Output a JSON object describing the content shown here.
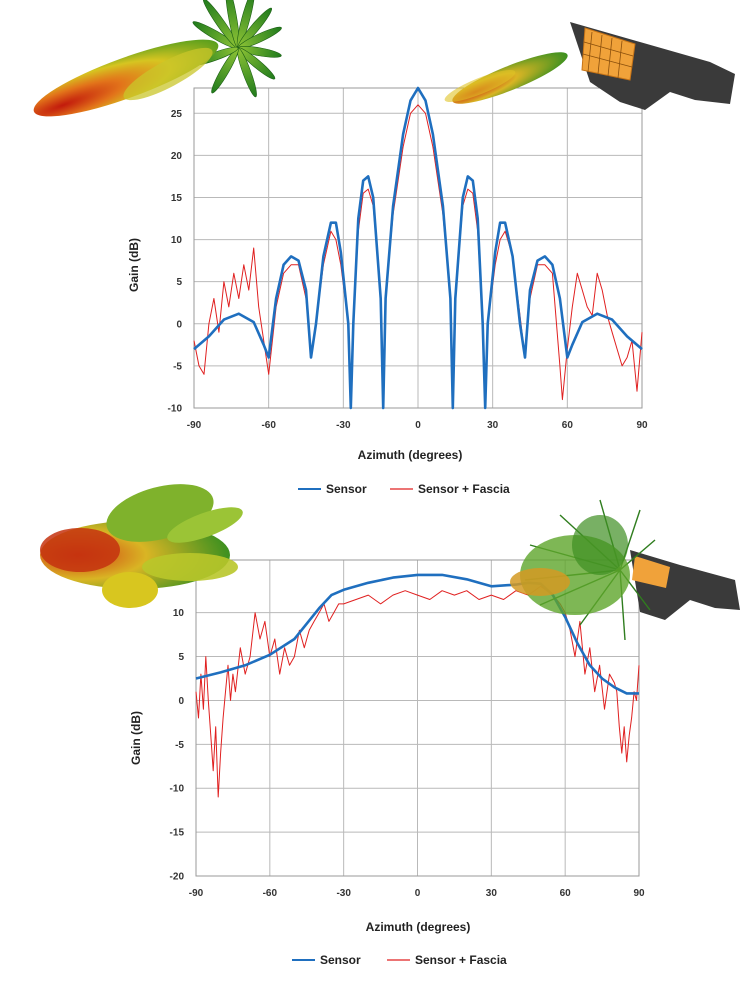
{
  "colors": {
    "sensor": "#1f6fbf",
    "fascia": "#e02020",
    "grid": "#b9b9b9"
  },
  "chart_data": [
    {
      "type": "line",
      "xlabel": "Azimuth (degrees)",
      "ylabel": "Gain (dB)",
      "xlim": [
        -90,
        90
      ],
      "ylim": [
        -10,
        28
      ],
      "xticks": [
        -90,
        -60,
        -30,
        0,
        30,
        60,
        90
      ],
      "yticks": [
        -10,
        -5,
        0,
        5,
        10,
        15,
        20,
        25
      ],
      "grid": true,
      "legend_position": "bottom-center",
      "series": [
        {
          "name": "Sensor",
          "x": [
            -90,
            -84,
            -78,
            -72,
            -66,
            -62,
            -60,
            -57,
            -54,
            -51,
            -48,
            -45,
            -43,
            -41,
            -38,
            -35,
            -33,
            -31,
            -28,
            -27,
            -26,
            -24,
            -22,
            -20,
            -18,
            -15,
            -14,
            -13,
            -10,
            -6,
            -3,
            0,
            3,
            6,
            10,
            13,
            14,
            15,
            18,
            20,
            22,
            24,
            26,
            27,
            28,
            31,
            33,
            35,
            38,
            41,
            43,
            45,
            48,
            51,
            54,
            57,
            60,
            62,
            66,
            72,
            78,
            84,
            90
          ],
          "values": [
            -3,
            -1.5,
            0.5,
            1.2,
            0.2,
            -2.5,
            -4,
            3,
            7,
            8,
            7.5,
            4,
            -4,
            0,
            8,
            12,
            12,
            8.5,
            0,
            -10,
            0,
            12.5,
            17,
            17.5,
            15,
            3,
            -10,
            3,
            14,
            22.5,
            26.5,
            28,
            26.5,
            22.5,
            14,
            3,
            -10,
            3,
            15,
            17.5,
            17,
            12.5,
            0,
            -10,
            0,
            8.5,
            12,
            12,
            8,
            0,
            -4,
            4,
            7.5,
            8,
            7,
            3,
            -4,
            -2.5,
            0.2,
            1.2,
            0.5,
            -1.5,
            -3
          ]
        },
        {
          "name": "Sensor + Fascia",
          "x": [
            -90,
            -88,
            -86,
            -84,
            -82,
            -80,
            -78,
            -76,
            -74,
            -72,
            -70,
            -68,
            -66,
            -64,
            -62,
            -60,
            -57,
            -54,
            -51,
            -48,
            -45,
            -43,
            -41,
            -38,
            -35,
            -33,
            -31,
            -28,
            -27,
            -26,
            -24,
            -22,
            -20,
            -18,
            -15,
            -14,
            -13,
            -10,
            -6,
            -3,
            0,
            3,
            6,
            10,
            13,
            14,
            15,
            18,
            20,
            22,
            24,
            26,
            27,
            28,
            31,
            33,
            35,
            38,
            41,
            43,
            45,
            48,
            51,
            54,
            57,
            58,
            60,
            62,
            64,
            66,
            68,
            70,
            72,
            74,
            76,
            78,
            80,
            82,
            84,
            86,
            88,
            90
          ],
          "values": [
            -2,
            -5,
            -6,
            0,
            3,
            -1,
            5,
            2,
            6,
            3,
            7,
            4,
            9,
            2,
            -2,
            -6,
            2,
            6,
            7,
            7,
            3,
            -4,
            0,
            7,
            11,
            10,
            7,
            0,
            -9,
            0,
            11,
            15.5,
            16,
            14,
            3,
            -10,
            3,
            13,
            21,
            25,
            26,
            25,
            21,
            13,
            3,
            -10,
            3,
            14,
            16,
            15.5,
            11,
            0,
            -9,
            0,
            7,
            10,
            11,
            8,
            1,
            -4,
            3,
            7,
            7,
            6,
            -5,
            -9,
            -3,
            2,
            6,
            4,
            2,
            1,
            6,
            4,
            1,
            -1,
            -3,
            -5,
            -4,
            -2,
            -8,
            -1
          ]
        }
      ]
    },
    {
      "type": "line",
      "xlabel": "Azimuth (degrees)",
      "ylabel": "Gain (dB)",
      "xlim": [
        -90,
        90
      ],
      "ylim": [
        -20,
        16
      ],
      "xticks": [
        -90,
        -60,
        -30,
        0,
        30,
        60,
        90
      ],
      "yticks": [
        -20,
        -15,
        -10,
        -5,
        0,
        5,
        10
      ],
      "grid": true,
      "legend_position": "bottom-center",
      "series": [
        {
          "name": "Sensor",
          "x": [
            -90,
            -80,
            -70,
            -60,
            -50,
            -40,
            -35,
            -30,
            -20,
            -10,
            0,
            10,
            20,
            30,
            40,
            45,
            50,
            55,
            60,
            65,
            70,
            75,
            80,
            85,
            90
          ],
          "values": [
            2.5,
            3.2,
            4,
            5.2,
            7,
            10.5,
            12,
            12.6,
            13.4,
            14,
            14.3,
            14.3,
            13.8,
            13,
            13.2,
            13.4,
            13.3,
            12,
            9.5,
            6.5,
            4,
            2.5,
            1.5,
            0.8,
            0.8
          ]
        },
        {
          "name": "Sensor + Fascia",
          "x": [
            -90,
            -89,
            -88,
            -87,
            -86,
            -85,
            -84,
            -83,
            -82,
            -81,
            -80,
            -79,
            -78,
            -77,
            -76,
            -75,
            -74,
            -72,
            -70,
            -68,
            -66,
            -64,
            -62,
            -60,
            -58,
            -56,
            -54,
            -52,
            -50,
            -48,
            -46,
            -44,
            -42,
            -40,
            -38,
            -36,
            -34,
            -32,
            -30,
            -25,
            -20,
            -15,
            -10,
            -5,
            0,
            5,
            10,
            15,
            20,
            25,
            30,
            35,
            40,
            45,
            50,
            55,
            58,
            60,
            62,
            64,
            66,
            68,
            70,
            72,
            74,
            76,
            78,
            80,
            81,
            82,
            83,
            84,
            85,
            86,
            87,
            88,
            89,
            90
          ],
          "values": [
            1,
            -2,
            3,
            -1,
            5,
            0,
            -4,
            -8,
            -3,
            -11,
            -6,
            -2,
            1,
            4,
            0,
            3,
            1,
            6,
            3,
            5,
            10,
            7,
            9,
            5,
            7,
            3,
            6,
            4,
            5,
            8,
            6,
            8,
            9,
            10,
            11,
            9,
            10,
            11,
            11,
            11.5,
            12,
            11,
            12,
            12.5,
            12,
            11.5,
            12.5,
            12,
            12.5,
            11.5,
            12,
            11.5,
            12.5,
            12,
            13,
            12,
            11,
            10,
            8,
            5,
            9,
            3,
            6,
            1,
            4,
            -1,
            3,
            2,
            1,
            -3,
            -6,
            -3,
            -7,
            -4,
            -2,
            1,
            0,
            4
          ]
        }
      ]
    }
  ]
}
